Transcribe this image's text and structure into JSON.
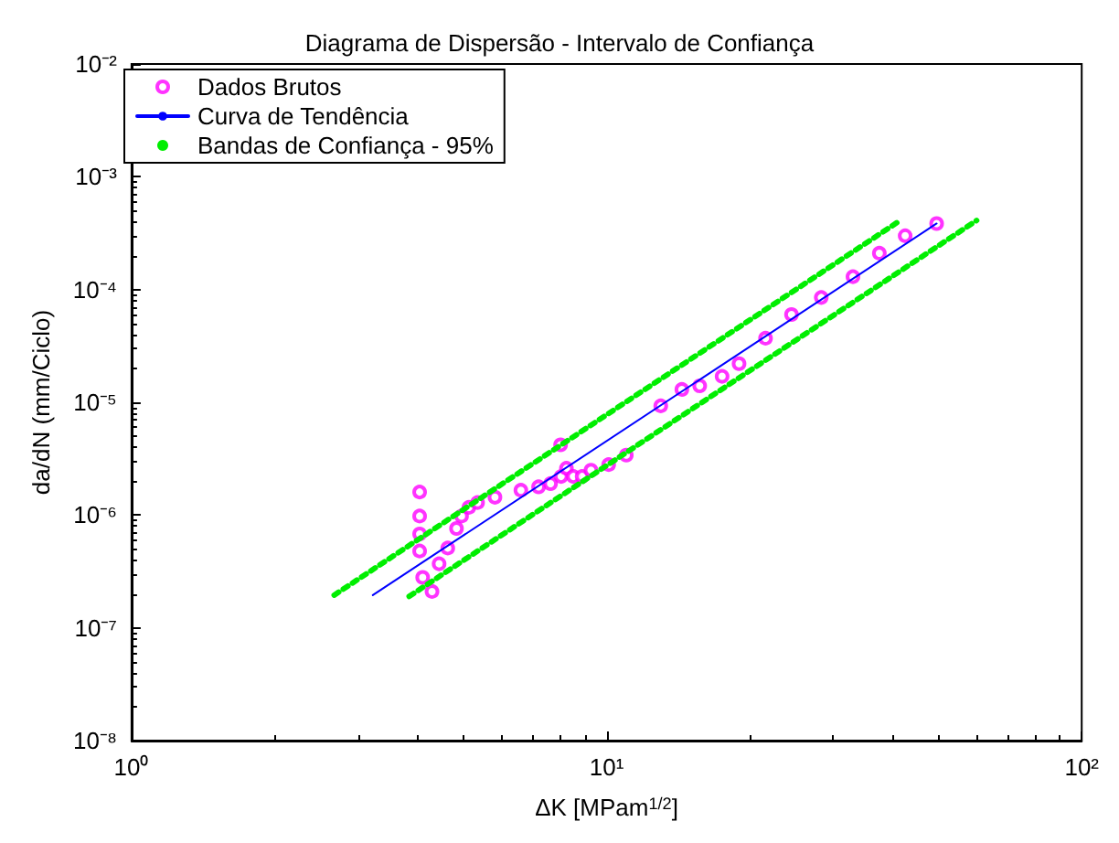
{
  "chart_data": {
    "type": "scatter",
    "title": "Diagrama de Dispersão - Intervalo de Confiança",
    "xlabel": "ΔK [MPam$^{1/2}$]",
    "ylabel": "da/dN (mm/Ciclo)",
    "log": "xy",
    "xlim": [
      1,
      100
    ],
    "ylim": [
      1e-08,
      0.01
    ],
    "xticks": [
      {
        "value": 1,
        "label": "10⁰"
      },
      {
        "value": 10,
        "label": "10¹"
      },
      {
        "value": 100,
        "label": "10²"
      }
    ],
    "yticks": [
      {
        "value": 1e-08,
        "label": "10⁻⁸"
      },
      {
        "value": 1e-07,
        "label": "10⁻⁷"
      },
      {
        "value": 1e-06,
        "label": "10⁻⁶"
      },
      {
        "value": 1e-05,
        "label": "10⁻⁵"
      },
      {
        "value": 0.0001,
        "label": "10⁻⁴"
      },
      {
        "value": 0.001,
        "label": "10⁻³"
      },
      {
        "value": 0.01,
        "label": "10⁻²"
      }
    ],
    "grid": false,
    "legend": "top left",
    "series": [
      {
        "name": "Dados Brutos",
        "type": "scatter",
        "marker": "circle",
        "color": "#ff00ff",
        "x": [
          4.04,
          4.04,
          4.04,
          4.04,
          4.1,
          4.29,
          4.44,
          4.63,
          4.83,
          4.95,
          5.13,
          5.35,
          5.82,
          6.6,
          7.19,
          7.62,
          8.02,
          8.0,
          8.23,
          8.51,
          8.88,
          9.27,
          10.1,
          11.0,
          13.0,
          14.4,
          15.7,
          17.5,
          19.0,
          21.6,
          24.5,
          28.3,
          33.0,
          37.5,
          42.5,
          49.5
        ],
        "values": [
          1.6e-06,
          9.8e-07,
          6.8e-07,
          4.8e-07,
          2.8e-07,
          2.1e-07,
          3.7e-07,
          5.1e-07,
          7.6e-07,
          9.8e-07,
          1.17e-06,
          1.29e-06,
          1.44e-06,
          1.66e-06,
          1.78e-06,
          1.9e-06,
          2.2e-06,
          4.2e-06,
          2.6e-06,
          2.2e-06,
          2.2e-06,
          2.5e-06,
          2.8e-06,
          3.4e-06,
          9.3e-06,
          1.3e-05,
          1.4e-05,
          1.7e-05,
          2.2e-05,
          3.7e-05,
          6e-05,
          8.5e-05,
          0.00013,
          0.00021,
          0.0003,
          0.000385
        ]
      },
      {
        "name": "Curva de Tendência",
        "type": "line",
        "line_style": "solid",
        "color": "#0000ff",
        "x": [
          3.22,
          49.5
        ],
        "values": [
          1.95e-07,
          0.000385
        ]
      },
      {
        "name": "Bandas de Confiança - 95%",
        "type": "line",
        "line_style": "dotted",
        "color": "#00ee00",
        "x": [
          2.67,
          41.5
        ],
        "values": [
          1.95e-07,
          0.00041
        ]
      },
      {
        "type": "line",
        "line_style": "dotted",
        "color": "#00ee00",
        "x": [
          3.84,
          60.1
        ],
        "values": [
          1.9e-07,
          0.00041
        ]
      }
    ]
  }
}
